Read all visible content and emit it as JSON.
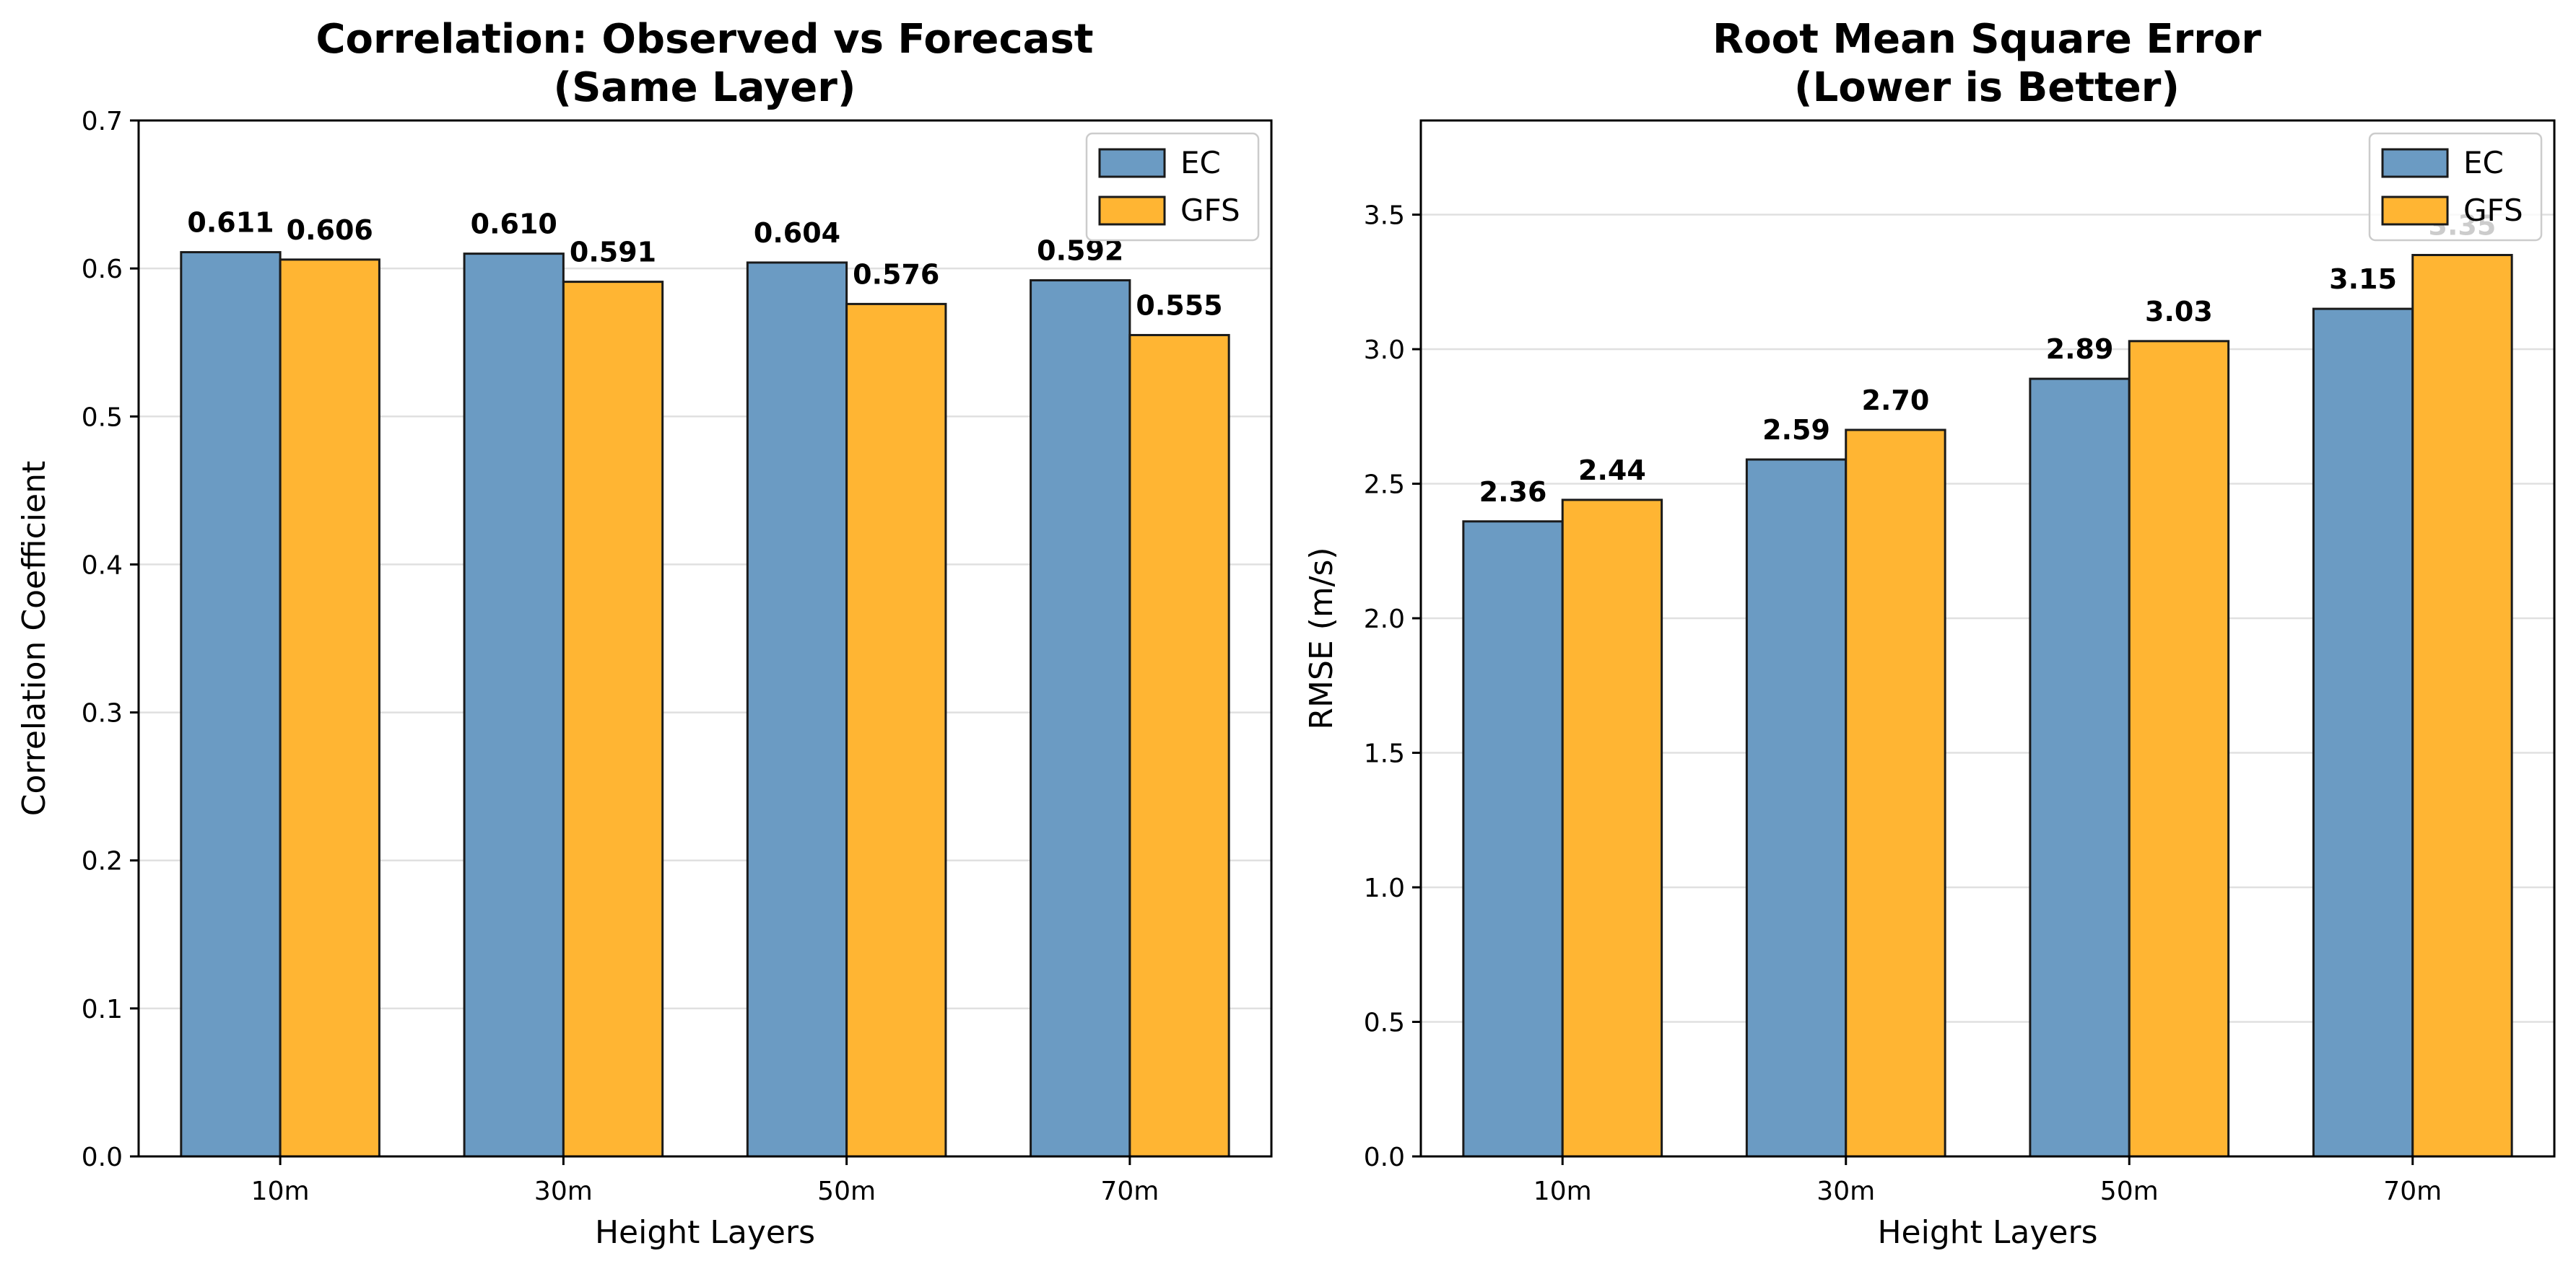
{
  "colors": {
    "ec": "#6b9bc3",
    "gfs": "#ffb533",
    "edge": "#1a1a1a",
    "grid": "#e0e0e0"
  },
  "chart_data": [
    {
      "type": "bar",
      "title": [
        "Correlation: Observed vs Forecast",
        "(Same Layer)"
      ],
      "xlabel": "Height Layers",
      "ylabel": "Correlation Coefficient",
      "categories": [
        "10m",
        "30m",
        "50m",
        "70m"
      ],
      "series": [
        {
          "name": "EC",
          "values": [
            0.611,
            0.61,
            0.604,
            0.592
          ],
          "labels": [
            "0.611",
            "0.610",
            "0.604",
            "0.592"
          ]
        },
        {
          "name": "GFS",
          "values": [
            0.606,
            0.591,
            0.576,
            0.555
          ],
          "labels": [
            "0.606",
            "0.591",
            "0.576",
            "0.555"
          ]
        }
      ],
      "ylim": [
        0,
        0.7
      ],
      "yticks": [
        "0.0",
        "0.1",
        "0.2",
        "0.3",
        "0.4",
        "0.5",
        "0.6",
        "0.7"
      ],
      "grid": true,
      "legend": "top-right"
    },
    {
      "type": "bar",
      "title": [
        "Root Mean Square Error",
        "(Lower is Better)"
      ],
      "xlabel": "Height Layers",
      "ylabel": "RMSE (m/s)",
      "categories": [
        "10m",
        "30m",
        "50m",
        "70m"
      ],
      "series": [
        {
          "name": "EC",
          "values": [
            2.36,
            2.59,
            2.89,
            3.15
          ],
          "labels": [
            "2.36",
            "2.59",
            "2.89",
            "3.15"
          ]
        },
        {
          "name": "GFS",
          "values": [
            2.44,
            2.7,
            3.03,
            3.35
          ],
          "labels": [
            "2.44",
            "2.70",
            "3.03",
            "3.35"
          ]
        }
      ],
      "ylim": [
        0,
        3.85
      ],
      "yticks": [
        "0.0",
        "0.5",
        "1.0",
        "1.5",
        "2.0",
        "2.5",
        "3.0",
        "3.5"
      ],
      "grid": true,
      "legend": "top-right"
    }
  ]
}
